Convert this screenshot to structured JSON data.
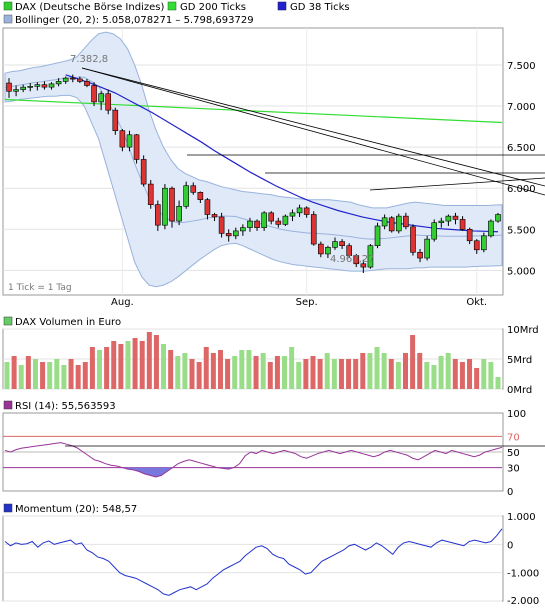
{
  "legend": {
    "dax_label": "DAX (Deutsche Börse Indizes)",
    "gd200_label": "GD 200 Ticks",
    "gd38_label": "GD 38 Ticks",
    "bollinger_label": "Bollinger (20, 2): 5.058,078271 – 5.798,693729"
  },
  "colors": {
    "up": "#33cc33",
    "down": "#dd3333",
    "gd200": "#33dd33",
    "gd38": "#2222cc",
    "band_fill": "#dfe9f7",
    "band_line": "#99b3dd",
    "rsi_line": "#993399",
    "rsi_fill": "#7777dd",
    "momentum_line": "#2233cc",
    "volume_up": "#99dd88",
    "volume_down": "#dd6666"
  },
  "price_panel": {
    "note": "1 Tick = 1 Tag",
    "high_label": "7.382,8",
    "low_label": "4.967,27",
    "y_ticks": [
      "7.500",
      "7.000",
      "6.500",
      "6.000",
      "5.500",
      "5.000"
    ],
    "x_ticks": [
      "Aug.",
      "Sep.",
      "Okt."
    ]
  },
  "volume_panel": {
    "label": "DAX Volumen in Euro",
    "y_ticks": [
      "10Mrd",
      "5Mrd",
      "0Mrd"
    ]
  },
  "rsi_panel": {
    "label": "RSI (14): 55,563593",
    "y_ticks": [
      "100",
      "70",
      "50",
      "30",
      "0"
    ]
  },
  "momentum_panel": {
    "label": "Momentum (20): 548,57",
    "y_ticks": [
      "1.000",
      "0",
      "-1.000",
      "-2.000"
    ]
  },
  "chart_data": [
    {
      "type": "candlestick",
      "series_name": "DAX (Deutsche Börse Indizes)",
      "x_ticks": [
        "Aug.",
        "Sep.",
        "Okt."
      ],
      "ylim": [
        4700,
        7950
      ],
      "ohlc": [
        [
          7280,
          7340,
          7100,
          7180
        ],
        [
          7180,
          7250,
          7120,
          7200
        ],
        [
          7200,
          7260,
          7170,
          7230
        ],
        [
          7230,
          7280,
          7180,
          7240
        ],
        [
          7240,
          7290,
          7190,
          7260
        ],
        [
          7260,
          7300,
          7200,
          7230
        ],
        [
          7230,
          7290,
          7200,
          7270
        ],
        [
          7270,
          7340,
          7240,
          7300
        ],
        [
          7300,
          7360,
          7270,
          7340
        ],
        [
          7340,
          7383,
          7290,
          7330
        ],
        [
          7330,
          7360,
          7280,
          7300
        ],
        [
          7300,
          7330,
          7230,
          7250
        ],
        [
          7250,
          7290,
          7000,
          7050
        ],
        [
          7050,
          7180,
          6950,
          7150
        ],
        [
          7150,
          7200,
          6900,
          6950
        ],
        [
          6950,
          6980,
          6650,
          6700
        ],
        [
          6700,
          6720,
          6450,
          6500
        ],
        [
          6500,
          6700,
          6450,
          6650
        ],
        [
          6650,
          6660,
          6300,
          6350
        ],
        [
          6350,
          6400,
          6020,
          6050
        ],
        [
          6050,
          6100,
          5750,
          5800
        ],
        [
          5800,
          5850,
          5480,
          5550
        ],
        [
          5550,
          6050,
          5500,
          6000
        ],
        [
          6000,
          6020,
          5520,
          5600
        ],
        [
          5600,
          5850,
          5550,
          5780
        ],
        [
          5780,
          6080,
          5750,
          6030
        ],
        [
          6030,
          6070,
          5920,
          5950
        ],
        [
          5950,
          5960,
          5820,
          5860
        ],
        [
          5860,
          5880,
          5620,
          5680
        ],
        [
          5680,
          5700,
          5600,
          5650
        ],
        [
          5650,
          5700,
          5400,
          5450
        ],
        [
          5450,
          5500,
          5350,
          5420
        ],
        [
          5420,
          5520,
          5380,
          5480
        ],
        [
          5480,
          5560,
          5420,
          5520
        ],
        [
          5520,
          5640,
          5470,
          5600
        ],
        [
          5600,
          5620,
          5480,
          5520
        ],
        [
          5520,
          5720,
          5480,
          5700
        ],
        [
          5700,
          5720,
          5560,
          5600
        ],
        [
          5600,
          5640,
          5520,
          5560
        ],
        [
          5560,
          5680,
          5540,
          5660
        ],
        [
          5660,
          5740,
          5600,
          5700
        ],
        [
          5700,
          5800,
          5650,
          5760
        ],
        [
          5760,
          5780,
          5640,
          5680
        ],
        [
          5680,
          5720,
          5300,
          5320
        ],
        [
          5320,
          5350,
          5160,
          5200
        ],
        [
          5200,
          5300,
          5150,
          5280
        ],
        [
          5280,
          5400,
          5250,
          5350
        ],
        [
          5350,
          5380,
          5260,
          5300
        ],
        [
          5300,
          5330,
          5150,
          5180
        ],
        [
          5180,
          5200,
          5040,
          5080
        ],
        [
          5080,
          5130,
          4967,
          5040
        ],
        [
          5040,
          5320,
          5020,
          5300
        ],
        [
          5300,
          5580,
          5270,
          5540
        ],
        [
          5540,
          5680,
          5500,
          5640
        ],
        [
          5640,
          5660,
          5460,
          5480
        ],
        [
          5480,
          5690,
          5450,
          5660
        ],
        [
          5660,
          5700,
          5500,
          5530
        ],
        [
          5530,
          5560,
          5180,
          5220
        ],
        [
          5220,
          5260,
          5100,
          5150
        ],
        [
          5150,
          5420,
          5120,
          5380
        ],
        [
          5380,
          5620,
          5350,
          5580
        ],
        [
          5580,
          5640,
          5520,
          5600
        ],
        [
          5600,
          5680,
          5540,
          5660
        ],
        [
          5660,
          5700,
          5560,
          5620
        ],
        [
          5620,
          5660,
          5480,
          5500
        ],
        [
          5500,
          5520,
          5320,
          5360
        ],
        [
          5360,
          5380,
          5200,
          5250
        ],
        [
          5250,
          5460,
          5220,
          5420
        ],
        [
          5420,
          5620,
          5400,
          5600
        ],
        [
          5600,
          5700,
          5580,
          5680
        ]
      ],
      "gd200": [
        7080,
        6800
      ],
      "gd38": [
        7380,
        7330,
        7280,
        7220,
        7160,
        7080,
        7000,
        6920,
        6830,
        6740,
        6650,
        6560,
        6460,
        6370,
        6280,
        6190,
        6110,
        6030,
        5960,
        5890,
        5830,
        5780,
        5730,
        5690,
        5650,
        5620,
        5590,
        5570,
        5550,
        5530,
        5510,
        5500,
        5490,
        5480,
        5475,
        5470
      ],
      "bollinger_upper": [
        7400,
        7420,
        7430,
        7450,
        7470,
        7480,
        7500,
        7520,
        7540,
        7560,
        7600,
        7700,
        7800,
        7880,
        7900,
        7880,
        7820,
        7700,
        7500,
        7250,
        6950,
        6700,
        6500,
        6350,
        6240,
        6180,
        6140,
        6100,
        6080,
        6050,
        6020,
        6000,
        5980,
        5960,
        5950,
        5940,
        5930,
        5920,
        5900,
        5890,
        5880,
        5870,
        5860,
        5860,
        5860,
        5860,
        5850,
        5840,
        5830,
        5800,
        5780,
        5760,
        5760,
        5760,
        5780,
        5800,
        5820,
        5830,
        5820,
        5810,
        5800,
        5790,
        5790,
        5790,
        5790,
        5790,
        5790,
        5790,
        5795,
        5799
      ],
      "bollinger_lower": [
        7050,
        7060,
        7080,
        7090,
        7100,
        7110,
        7120,
        7120,
        7130,
        7130,
        7100,
        7000,
        6800,
        6600,
        6300,
        6000,
        5700,
        5400,
        5100,
        4920,
        4820,
        4800,
        4820,
        4860,
        4920,
        4990,
        5060,
        5130,
        5190,
        5250,
        5300,
        5320,
        5330,
        5300,
        5260,
        5220,
        5180,
        5140,
        5110,
        5090,
        5070,
        5060,
        5050,
        5040,
        5030,
        5020,
        5010,
        5000,
        4990,
        4990,
        4990,
        5000,
        5010,
        5020,
        5020,
        5020,
        5020,
        5030,
        5030,
        5040,
        5040,
        5040,
        5040,
        5040,
        5040,
        5045,
        5050,
        5052,
        5055,
        5058
      ]
    },
    {
      "type": "bar",
      "series_name": "DAX Volumen in Euro",
      "ylim": [
        0,
        10
      ],
      "y_unit": "Mrd",
      "values": [
        4.5,
        5.5,
        4,
        5.5,
        5,
        4.5,
        4.5,
        5,
        4,
        5,
        4,
        4.5,
        7,
        6.5,
        7,
        8,
        7.5,
        8,
        8.5,
        8,
        9.5,
        9,
        7.5,
        6.5,
        5.5,
        6,
        5,
        4.5,
        7,
        6,
        6.5,
        5,
        5.5,
        6.5,
        6.5,
        5.5,
        6,
        4.5,
        5.5,
        5.5,
        7,
        4.5,
        5,
        5.5,
        5,
        6,
        5,
        5,
        5,
        5,
        6,
        6,
        7,
        6,
        5,
        4.5,
        6,
        9,
        6,
        4.5,
        4,
        5.5,
        6,
        5,
        4.5,
        5,
        3.5,
        5,
        4.5,
        2
      ],
      "directions": [
        "u",
        "d",
        "u",
        "d",
        "u",
        "d",
        "u",
        "u",
        "u",
        "d",
        "d",
        "d",
        "d",
        "u",
        "d",
        "d",
        "d",
        "u",
        "d",
        "d",
        "d",
        "d",
        "u",
        "d",
        "u",
        "u",
        "d",
        "d",
        "d",
        "d",
        "d",
        "d",
        "u",
        "u",
        "u",
        "d",
        "u",
        "d",
        "d",
        "u",
        "u",
        "u",
        "d",
        "d",
        "d",
        "u",
        "u",
        "d",
        "d",
        "d",
        "d",
        "u",
        "u",
        "u",
        "d",
        "u",
        "d",
        "d",
        "d",
        "u",
        "u",
        "u",
        "u",
        "d",
        "d",
        "d",
        "d",
        "u",
        "u",
        "u"
      ]
    },
    {
      "type": "line",
      "series_name": "RSI (14)",
      "ylim": [
        0,
        100
      ],
      "reference_lines": [
        70,
        50,
        30
      ],
      "values": [
        52,
        50,
        53,
        55,
        56,
        57,
        58,
        59,
        60,
        61,
        62,
        60,
        58,
        55,
        50,
        45,
        40,
        38,
        35,
        33,
        32,
        30,
        28,
        27,
        25,
        22,
        20,
        18,
        20,
        25,
        30,
        35,
        38,
        40,
        38,
        36,
        34,
        32,
        30,
        29,
        28,
        30,
        35,
        45,
        50,
        48,
        52,
        50,
        48,
        50,
        52,
        50,
        48,
        44,
        42,
        45,
        48,
        50,
        52,
        50,
        48,
        50,
        52,
        50,
        48,
        46,
        44,
        46,
        50,
        52,
        50,
        48,
        46,
        42,
        40,
        44,
        48,
        52,
        50,
        48,
        52,
        50,
        48,
        46,
        44,
        46,
        50,
        52,
        54,
        56
      ]
    },
    {
      "type": "line",
      "series_name": "Momentum (20)",
      "ylim": [
        -2000,
        1000
      ],
      "values": [
        100,
        -50,
        50,
        0,
        20,
        100,
        -100,
        50,
        120,
        0,
        50,
        100,
        150,
        0,
        50,
        -200,
        -300,
        -450,
        -500,
        -600,
        -800,
        -1000,
        -1100,
        -1150,
        -1200,
        -1300,
        -1400,
        -1500,
        -1600,
        -1750,
        -1800,
        -1700,
        -1600,
        -1550,
        -1500,
        -1600,
        -1500,
        -1400,
        -1200,
        -1050,
        -900,
        -800,
        -700,
        -600,
        -400,
        -250,
        -100,
        -50,
        -150,
        -350,
        -450,
        -500,
        -700,
        -800,
        -900,
        -1050,
        -1000,
        -800,
        -600,
        -500,
        -400,
        -300,
        -200,
        -50,
        0,
        -100,
        -200,
        -100,
        50,
        -50,
        -200,
        -350,
        -100,
        50,
        100,
        50,
        0,
        -50,
        -100,
        50,
        150,
        100,
        50,
        0,
        -50,
        100,
        150,
        100,
        50,
        100,
        300,
        548
      ]
    }
  ]
}
